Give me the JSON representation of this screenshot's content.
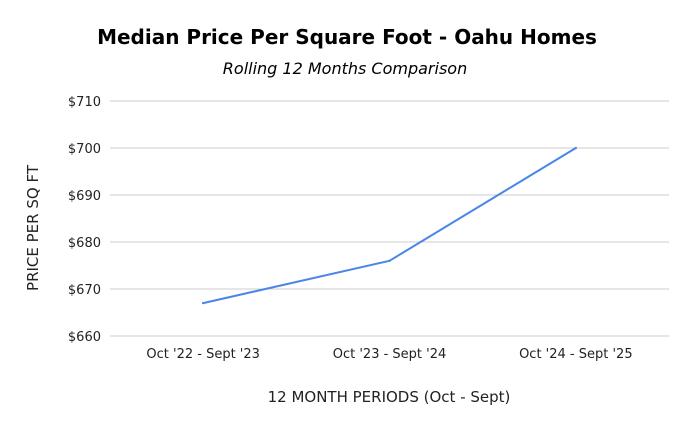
{
  "chart_data": {
    "type": "line",
    "title": "Median Price Per Square Foot - Oahu Homes",
    "subtitle": "Rolling 12 Months Comparison",
    "xlabel": "12 MONTH PERIODS (Oct - Sept)",
    "ylabel": "PRICE PER SQ FT",
    "categories": [
      "Oct '22 - Sept '23",
      "Oct '23 - Sept '24",
      "Oct '24 - Sept '25"
    ],
    "series": [
      {
        "values": [
          667,
          676,
          700
        ],
        "color": "#4a86e8"
      }
    ],
    "ylim": [
      660,
      710
    ],
    "yticks": [
      660,
      670,
      680,
      690,
      700,
      710
    ],
    "ytick_labels": [
      "$660",
      "$670",
      "$680",
      "$690",
      "$700",
      "$710"
    ],
    "grid": true,
    "legend": "none"
  }
}
